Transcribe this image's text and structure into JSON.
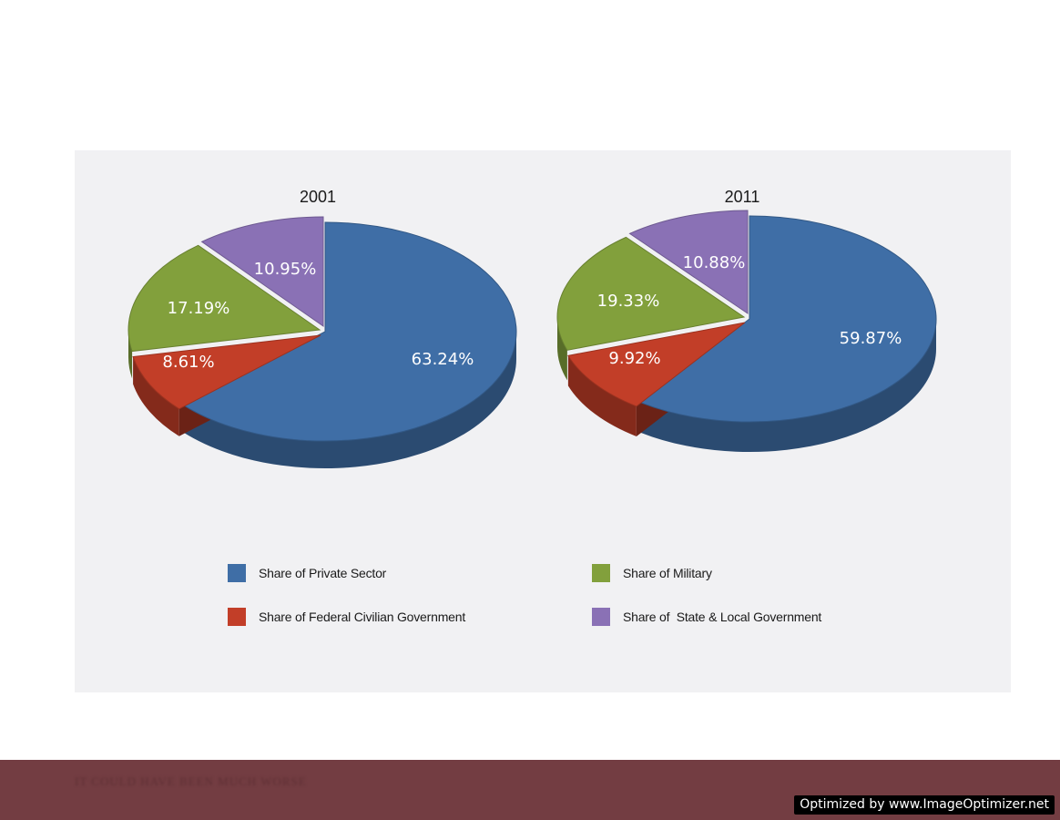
{
  "chart_data": [
    {
      "type": "pie",
      "title": "2001",
      "categories": [
        "Share of Private Sector",
        "Share of Federal Civilian Government",
        "Share of Military",
        "Share of  State & Local Government"
      ],
      "values": [
        63.24,
        8.61,
        17.19,
        10.95
      ],
      "labels": [
        "63.24%",
        "8.61%",
        "17.19%",
        "10.95%"
      ]
    },
    {
      "type": "pie",
      "title": "2011",
      "categories": [
        "Share of Private Sector",
        "Share of Federal Civilian Government",
        "Share of Military",
        "Share of  State & Local Government"
      ],
      "values": [
        59.87,
        9.92,
        19.33,
        10.88
      ],
      "labels": [
        "59.87%",
        "9.92%",
        "19.33%",
        "10.88%"
      ]
    }
  ],
  "legend": {
    "private": {
      "label": "Share of Private Sector",
      "color": "#3f6ea6"
    },
    "federal": {
      "label": "Share of Federal Civilian Government",
      "color": "#c23e28"
    },
    "military": {
      "label": "Share of Military",
      "color": "#82a03c"
    },
    "state": {
      "label": "Share of  State & Local Government",
      "color": "#8a71b5"
    }
  },
  "colors": {
    "private": "#3f6ea6",
    "federal": "#c23e28",
    "military": "#82a03c",
    "state": "#8a71b5",
    "footer": "#733d42"
  },
  "footer": {
    "text": "It could have been much worse",
    "watermark": "Optimized by www.ImageOptimizer.net"
  }
}
